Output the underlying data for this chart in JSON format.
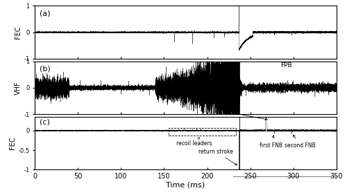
{
  "xlim": [
    0,
    350
  ],
  "ylim_ab": [
    -1,
    1
  ],
  "ylim_c": [
    -1,
    0.35
  ],
  "xticks": [
    0,
    50,
    100,
    150,
    200,
    250,
    300,
    350
  ],
  "xlabel": "Time (ms)",
  "panel_a_label": "(a)",
  "panel_b_label": "(b)",
  "panel_c_label": "(c)",
  "ylabel_a": "FEC",
  "ylabel_b": "VHF",
  "ylabel_c": "FEC",
  "return_stroke_time": 237,
  "first_fnb_time": 278,
  "second_fnb_time": 298,
  "fpb_label": "FPB",
  "seed": 42,
  "yticks_ab": [
    -1,
    0,
    1
  ],
  "yticks_c": [
    -1,
    -0.5,
    0
  ],
  "figsize": [
    5.0,
    2.82
  ],
  "dpi": 100
}
